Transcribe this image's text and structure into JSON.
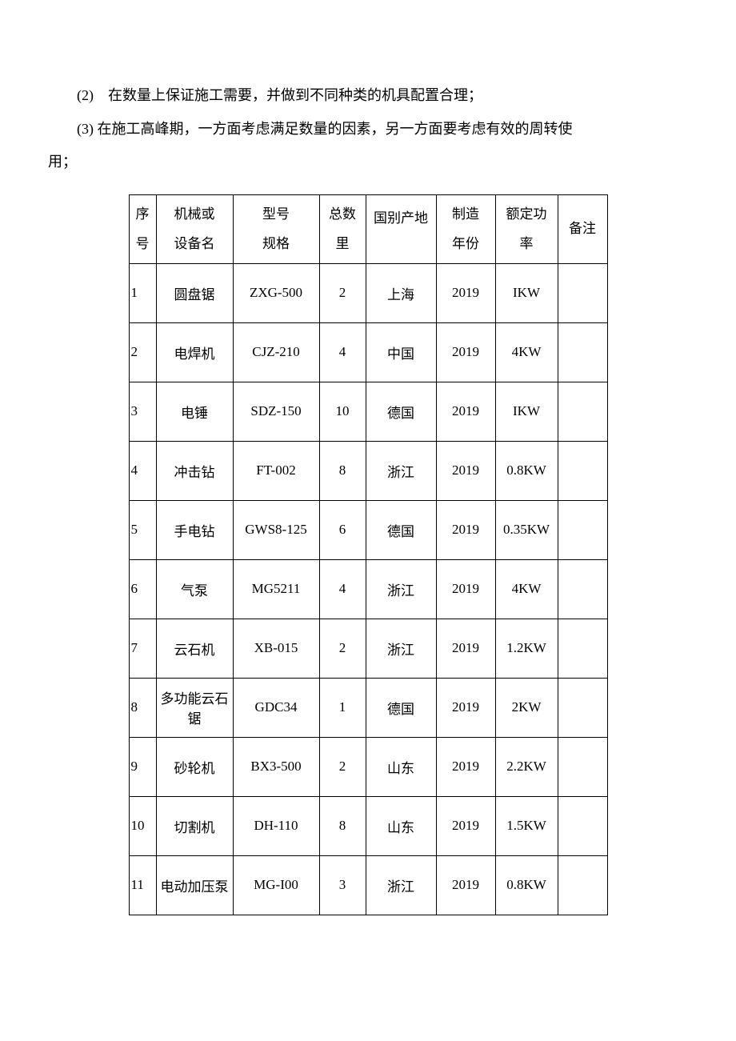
{
  "paragraphs": {
    "p2": "(2)　在数量上保证施工需要，并做到不同种类的机具配置合理；",
    "p3_line1": "(3) 在施工高峰期，一方面考虑满足数量的因素，另一方面要考虑有效的周转使",
    "p3_line2": "用；"
  },
  "table": {
    "columns": {
      "seq_l1": "序",
      "seq_l2": "号",
      "name_l1": "机械或",
      "name_l2": "设备名",
      "model_l1": "型号",
      "model_l2": "规格",
      "qty_l1": "总数",
      "qty_l2": "里",
      "origin": "国别产地",
      "year_l1": "制造",
      "year_l2": "年份",
      "power_l1": "额定功",
      "power_l2": "率",
      "note": "备注"
    },
    "rows": [
      {
        "seq": "1",
        "name": "圆盘锯",
        "model": "ZXG-500",
        "qty": "2",
        "origin": "上海",
        "year": "2019",
        "power": "IKW",
        "note": ""
      },
      {
        "seq": "2",
        "name": "电焊机",
        "model": "CJZ-210",
        "qty": "4",
        "origin": "中国",
        "year": "2019",
        "power": "4KW",
        "note": ""
      },
      {
        "seq": "3",
        "name": "电锤",
        "model": "SDZ-150",
        "qty": "10",
        "origin": "德国",
        "year": "2019",
        "power": "IKW",
        "note": ""
      },
      {
        "seq": "4",
        "name": "冲击钻",
        "model": "FT-002",
        "qty": "8",
        "origin": "浙江",
        "year": "2019",
        "power": "0.8KW",
        "note": ""
      },
      {
        "seq": "5",
        "name": "手电钻",
        "model": "GWS8-125",
        "qty": "6",
        "origin": "德国",
        "year": "2019",
        "power": "0.35KW",
        "note": ""
      },
      {
        "seq": "6",
        "name": "气泵",
        "model": "MG5211",
        "qty": "4",
        "origin": "浙江",
        "year": "2019",
        "power": "4KW",
        "note": ""
      },
      {
        "seq": "7",
        "name": "云石机",
        "model": "XB-015",
        "qty": "2",
        "origin": "浙江",
        "year": "2019",
        "power": "1.2KW",
        "note": ""
      },
      {
        "seq": "8",
        "name": "多功能云石锯",
        "model": "GDC34",
        "qty": "1",
        "origin": "德国",
        "year": "2019",
        "power": "2KW",
        "note": ""
      },
      {
        "seq": "9",
        "name": "砂轮机",
        "model": "BX3-500",
        "qty": "2",
        "origin": "山东",
        "year": "2019",
        "power": "2.2KW",
        "note": ""
      },
      {
        "seq": "10",
        "name": "切割机",
        "model": "DH-110",
        "qty": "8",
        "origin": "山东",
        "year": "2019",
        "power": "1.5KW",
        "note": ""
      },
      {
        "seq": "11",
        "name": "电动加压泵",
        "model": "MG-I00",
        "qty": "3",
        "origin": "浙江",
        "year": "2019",
        "power": "0.8KW",
        "note": ""
      }
    ],
    "colors": {
      "border": "#000000",
      "background": "#ffffff",
      "text": "#000000"
    }
  }
}
